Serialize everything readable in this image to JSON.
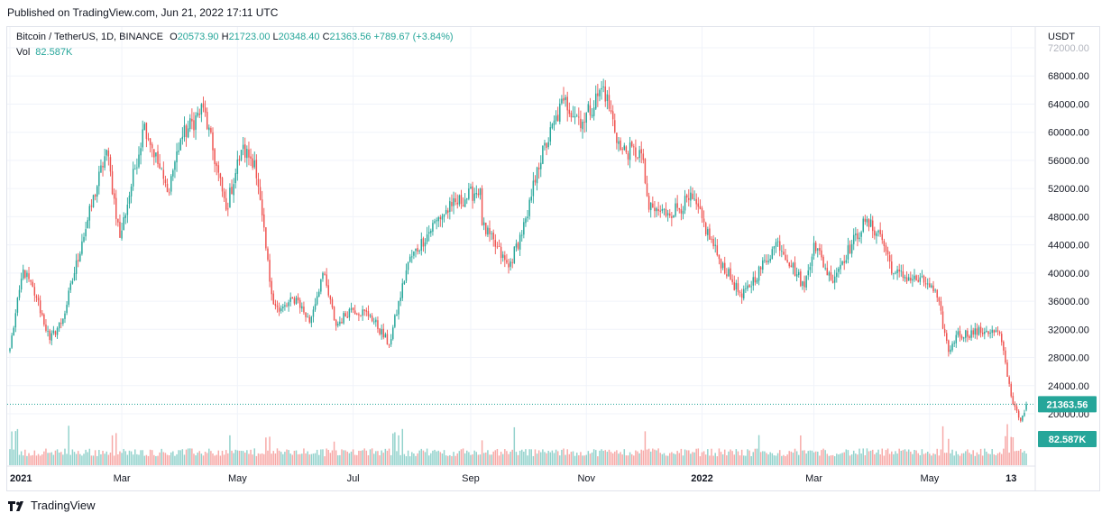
{
  "header": {
    "published": "Published on TradingView.com, Jun 21, 2022 17:11 UTC"
  },
  "legend": {
    "symbol": "Bitcoin / TetherUS, 1D, BINANCE",
    "o_label": "O",
    "o_value": "20573.90",
    "h_label": "H",
    "h_value": "21723.00",
    "l_label": "L",
    "l_value": "20348.40",
    "c_label": "C",
    "c_value": "21363.56",
    "change": "+789.67 (+3.84%)",
    "vol_label": "Vol",
    "vol_value": "82.587K"
  },
  "footer": {
    "brand": "TradingView"
  },
  "colors": {
    "up": "#26a69a",
    "down": "#ef5350",
    "grid": "#f0f3fa",
    "text": "#131722",
    "price_line": "#26a69a"
  },
  "chart_data": {
    "type": "candlestick",
    "symbol": "Bitcoin / TetherUS",
    "interval": "1D",
    "exchange": "BINANCE",
    "currency": "USDT",
    "y_ticks": [
      20000,
      24000,
      28000,
      32000,
      36000,
      40000,
      44000,
      48000,
      52000,
      56000,
      60000,
      64000,
      68000,
      72000
    ],
    "y_tick_labels": [
      "20000.00",
      "24000.00",
      "28000.00",
      "32000.00",
      "36000.00",
      "40000.00",
      "44000.00",
      "48000.00",
      "52000.00",
      "56000.00",
      "60000.00",
      "64000.00",
      "68000.00",
      "72000.00"
    ],
    "x_labels": [
      "2021",
      "Mar",
      "May",
      "Jul",
      "Sep",
      "Nov",
      "2022",
      "Mar",
      "May",
      "13"
    ],
    "last_price": "21363.56",
    "last_volume": "82.587K",
    "close_anchors": [
      [
        "2021-01-01",
        29300
      ],
      [
        "2021-01-08",
        40500
      ],
      [
        "2021-01-15",
        36500
      ],
      [
        "2021-01-22",
        30500
      ],
      [
        "2021-01-29",
        33500
      ],
      [
        "2021-02-08",
        44500
      ],
      [
        "2021-02-21",
        57500
      ],
      [
        "2021-02-28",
        45000
      ],
      [
        "2021-03-13",
        61200
      ],
      [
        "2021-03-25",
        51500
      ],
      [
        "2021-04-01",
        59000
      ],
      [
        "2021-04-13",
        63500
      ],
      [
        "2021-04-25",
        49000
      ],
      [
        "2021-05-03",
        57500
      ],
      [
        "2021-05-10",
        56000
      ],
      [
        "2021-05-19",
        37000
      ],
      [
        "2021-05-23",
        34500
      ],
      [
        "2021-06-01",
        36500
      ],
      [
        "2021-06-08",
        33000
      ],
      [
        "2021-06-15",
        40000
      ],
      [
        "2021-06-22",
        32500
      ],
      [
        "2021-06-30",
        35000
      ],
      [
        "2021-07-10",
        34000
      ],
      [
        "2021-07-20",
        29800
      ],
      [
        "2021-07-30",
        41500
      ],
      [
        "2021-08-14",
        47500
      ],
      [
        "2021-08-22",
        49500
      ],
      [
        "2021-09-06",
        52000
      ],
      [
        "2021-09-07",
        46800
      ],
      [
        "2021-09-21",
        40800
      ],
      [
        "2021-10-01",
        48000
      ],
      [
        "2021-10-06",
        55000
      ],
      [
        "2021-10-20",
        64500
      ],
      [
        "2021-10-30",
        61500
      ],
      [
        "2021-11-10",
        66500
      ],
      [
        "2021-11-19",
        57500
      ],
      [
        "2021-11-30",
        57000
      ],
      [
        "2021-12-04",
        49000
      ],
      [
        "2021-12-14",
        48500
      ],
      [
        "2021-12-27",
        50500
      ],
      [
        "2022-01-10",
        42000
      ],
      [
        "2022-01-22",
        36500
      ],
      [
        "2022-02-10",
        44500
      ],
      [
        "2022-02-24",
        38000
      ],
      [
        "2022-03-01",
        44300
      ],
      [
        "2022-03-10",
        39000
      ],
      [
        "2022-03-28",
        47300
      ],
      [
        "2022-04-05",
        45500
      ],
      [
        "2022-04-12",
        40000
      ],
      [
        "2022-04-30",
        38500
      ],
      [
        "2022-05-05",
        36500
      ],
      [
        "2022-05-11",
        28800
      ],
      [
        "2022-05-15",
        31200
      ],
      [
        "2022-05-31",
        31800
      ],
      [
        "2022-06-07",
        31400
      ],
      [
        "2022-06-13",
        22500
      ],
      [
        "2022-06-15",
        21000
      ],
      [
        "2022-06-18",
        19000
      ],
      [
        "2022-06-21",
        21363.56
      ]
    ],
    "volume_note": "daily volume bars, colored by candle direction; last bar 82.587K",
    "grid": true,
    "price_axis": "right",
    "time_axis": "bottom"
  }
}
